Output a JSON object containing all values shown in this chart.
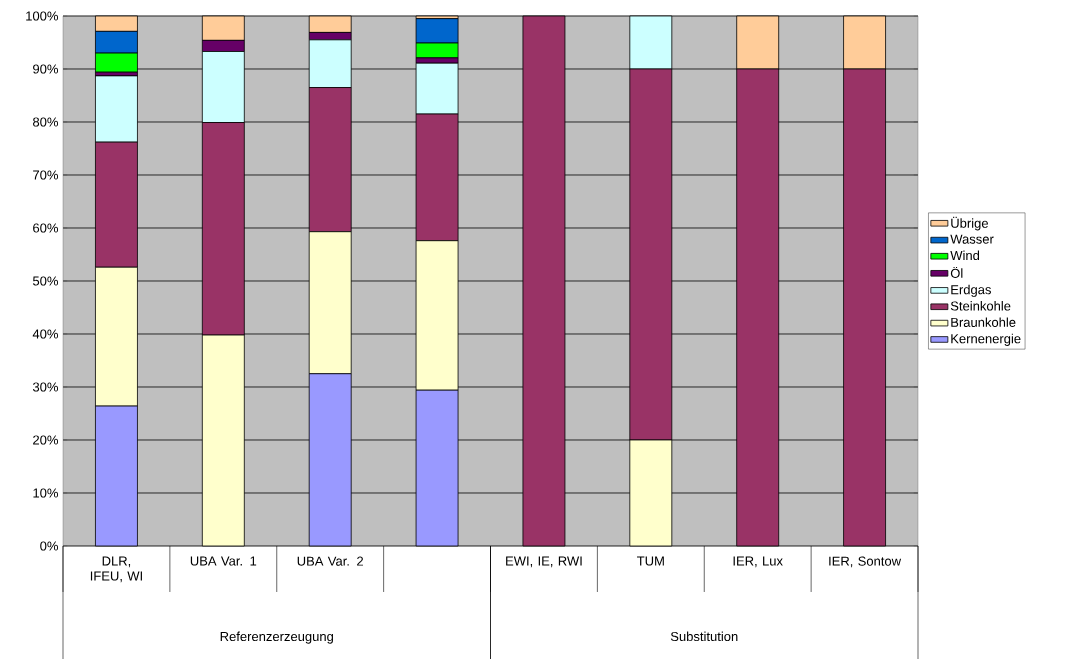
{
  "chart_data": {
    "type": "bar",
    "stacked": true,
    "categories": [
      "DLR, IFEU, WI",
      "UBA Var. 1",
      "UBA Var. 2",
      null,
      "EWI, IE, RWI",
      "TUM",
      "IER, Lux",
      "IER, Sontow"
    ],
    "series": [
      {
        "name": "Kernenergie",
        "color": "#9999ff",
        "values": [
          26.4,
          0,
          32.5,
          29.4,
          0,
          0,
          0,
          0
        ]
      },
      {
        "name": "Braunkohle",
        "color": "#ffffcc",
        "values": [
          26.2,
          39.8,
          26.8,
          28.2,
          0,
          20,
          0,
          0
        ]
      },
      {
        "name": "Steinkohle",
        "color": "#993366",
        "values": [
          23.6,
          40.1,
          27.2,
          23.9,
          100,
          70,
          90,
          90
        ]
      },
      {
        "name": "Erdgas",
        "color": "#ccffff",
        "values": [
          12.5,
          13.4,
          9.0,
          9.6,
          0,
          10,
          0,
          0
        ]
      },
      {
        "name": "Öl",
        "color": "#660066",
        "values": [
          0.7,
          2.1,
          1.4,
          1.0,
          0,
          0,
          0,
          0
        ]
      },
      {
        "name": "Wind",
        "color": "#00ff00",
        "values": [
          3.6,
          0,
          0,
          2.8,
          0,
          0,
          0,
          0
        ]
      },
      {
        "name": "Wasser",
        "color": "#0066cc",
        "values": [
          4.1,
          0,
          0,
          4.6,
          0,
          0,
          0,
          0
        ]
      },
      {
        "name": "Übrige",
        "color": "#ffcc99",
        "values": [
          2.9,
          4.6,
          3.1,
          0.5,
          0,
          0,
          10,
          10
        ]
      }
    ],
    "ylim": [
      0,
      100
    ],
    "yticks": [
      {
        "value": 0,
        "label": "0%"
      },
      {
        "value": 10,
        "label": "10%"
      },
      {
        "value": 20,
        "label": "20%"
      },
      {
        "value": 30,
        "label": "30%"
      },
      {
        "value": 40,
        "label": "40%"
      },
      {
        "value": 50,
        "label": "50%"
      },
      {
        "value": 60,
        "label": "60%"
      },
      {
        "value": 70,
        "label": "70%"
      },
      {
        "value": 80,
        "label": "80%"
      },
      {
        "value": 90,
        "label": "90%"
      },
      {
        "value": 100,
        "label": "100%"
      }
    ],
    "grid": "y",
    "legend": "right",
    "annotations": [
      "Referenzerzeugung",
      "Substitution"
    ]
  }
}
